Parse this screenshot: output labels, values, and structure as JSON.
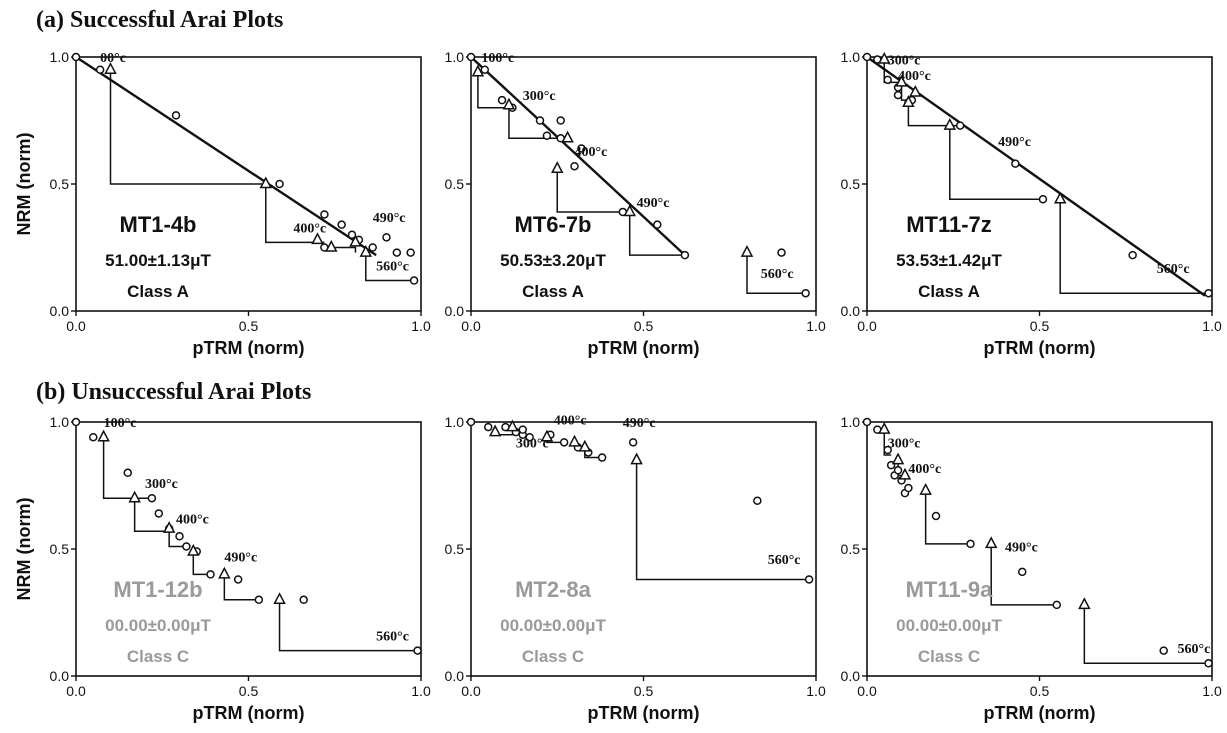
{
  "sections": [
    {
      "title": "(a) Successful Arai Plots"
    },
    {
      "title": "(b) Unsuccessful Arai Plots"
    }
  ],
  "colors": {
    "pass": "#111111",
    "fail": "#9a9a9a"
  },
  "chart_data": [
    {
      "type": "scatter",
      "section": 0,
      "xlabel": "pTRM (norm)",
      "ylabel": "NRM (norm)",
      "xlim": [
        0,
        1
      ],
      "ylim": [
        0,
        1
      ],
      "xticks": [
        "0.0",
        "0.5",
        "1.0"
      ],
      "yticks": [
        "0.0",
        "0.5",
        "1.0"
      ],
      "sample": "MT1-4b",
      "estimate": "51.00±1.13μT",
      "class": "Class A",
      "status": "pass",
      "circles": [
        [
          0,
          1.0
        ],
        [
          0.07,
          0.95
        ],
        [
          0.29,
          0.77
        ],
        [
          0.59,
          0.5
        ],
        [
          0.72,
          0.38
        ],
        [
          0.77,
          0.34
        ],
        [
          0.8,
          0.3
        ],
        [
          0.82,
          0.28
        ],
        [
          0.86,
          0.25
        ],
        [
          0.72,
          0.25
        ],
        [
          0.9,
          0.29
        ],
        [
          0.93,
          0.23
        ],
        [
          0.97,
          0.23
        ],
        [
          0.98,
          0.12
        ]
      ],
      "triangles": [
        [
          0.1,
          0.95
        ],
        [
          0.55,
          0.5
        ],
        [
          0.7,
          0.28
        ],
        [
          0.74,
          0.25
        ],
        [
          0.81,
          0.27
        ],
        [
          0.84,
          0.23
        ]
      ],
      "fit": [
        [
          0,
          1.0
        ],
        [
          0.87,
          0.22
        ]
      ],
      "checks": [
        [
          0.1,
          0.95,
          0.1,
          0.5,
          0.55,
          0.5
        ],
        [
          0.55,
          0.5,
          0.55,
          0.27,
          0.72,
          0.27
        ],
        [
          0.72,
          0.25,
          0.81,
          0.25,
          0.81,
          0.23
        ],
        [
          0.84,
          0.23,
          0.84,
          0.12,
          0.98,
          0.12
        ]
      ],
      "temps": [
        {
          "text": "00°c",
          "x": 0.07,
          "y": 0.98
        },
        {
          "text": "400°c",
          "x": 0.63,
          "y": 0.31
        },
        {
          "text": "490°c",
          "x": 0.86,
          "y": 0.35
        },
        {
          "text": "560°c",
          "x": 0.87,
          "y": 0.16
        }
      ]
    },
    {
      "type": "scatter",
      "section": 0,
      "xlabel": "pTRM (norm)",
      "ylabel": "NRM (norm)",
      "xlim": [
        0,
        1
      ],
      "ylim": [
        0,
        1
      ],
      "xticks": [
        "0.0",
        "0.5",
        "1.0"
      ],
      "yticks": [
        "0.0",
        "0.5",
        "1.0"
      ],
      "sample": "MT6-7b",
      "estimate": "50.53±3.20μT",
      "class": "Class A",
      "status": "pass",
      "circles": [
        [
          0,
          1.0
        ],
        [
          0.04,
          0.95
        ],
        [
          0.09,
          0.83
        ],
        [
          0.12,
          0.8
        ],
        [
          0.2,
          0.75
        ],
        [
          0.22,
          0.69
        ],
        [
          0.26,
          0.75
        ],
        [
          0.26,
          0.68
        ],
        [
          0.3,
          0.57
        ],
        [
          0.32,
          0.64
        ],
        [
          0.44,
          0.39
        ],
        [
          0.54,
          0.34
        ],
        [
          0.62,
          0.22
        ],
        [
          0.9,
          0.23
        ],
        [
          0.97,
          0.07
        ]
      ],
      "triangles": [
        [
          0.02,
          0.94
        ],
        [
          0.11,
          0.81
        ],
        [
          0.28,
          0.68
        ],
        [
          0.25,
          0.56
        ],
        [
          0.46,
          0.39
        ],
        [
          0.8,
          0.23
        ]
      ],
      "fit": [
        [
          0,
          1.0
        ],
        [
          0.62,
          0.22
        ]
      ],
      "checks": [
        [
          0.02,
          0.94,
          0.02,
          0.8,
          0.12,
          0.8
        ],
        [
          0.11,
          0.81,
          0.11,
          0.68,
          0.26,
          0.68
        ],
        [
          0.25,
          0.56,
          0.25,
          0.39,
          0.44,
          0.39
        ],
        [
          0.46,
          0.39,
          0.46,
          0.22,
          0.62,
          0.22
        ],
        [
          0.8,
          0.23,
          0.8,
          0.07,
          0.97,
          0.07
        ]
      ],
      "temps": [
        {
          "text": "100°c",
          "x": 0.03,
          "y": 0.98
        },
        {
          "text": "300°c",
          "x": 0.15,
          "y": 0.83
        },
        {
          "text": "400°c",
          "x": 0.3,
          "y": 0.61
        },
        {
          "text": "490°c",
          "x": 0.48,
          "y": 0.41
        },
        {
          "text": "560°c",
          "x": 0.84,
          "y": 0.13
        }
      ]
    },
    {
      "type": "scatter",
      "section": 0,
      "xlabel": "pTRM (norm)",
      "ylabel": "NRM (norm)",
      "xlim": [
        0,
        1
      ],
      "ylim": [
        0,
        1
      ],
      "xticks": [
        "0.0",
        "0.5",
        "1.0"
      ],
      "yticks": [
        "0.0",
        "0.5",
        "1.0"
      ],
      "sample": "MT11-7z",
      "estimate": "53.53±1.42μT",
      "class": "Class A",
      "status": "pass",
      "circles": [
        [
          0,
          1.0
        ],
        [
          0.03,
          0.99
        ],
        [
          0.06,
          0.91
        ],
        [
          0.09,
          0.88
        ],
        [
          0.09,
          0.85
        ],
        [
          0.12,
          0.82
        ],
        [
          0.13,
          0.83
        ],
        [
          0.27,
          0.73
        ],
        [
          0.43,
          0.58
        ],
        [
          0.51,
          0.44
        ],
        [
          0.77,
          0.22
        ],
        [
          0.99,
          0.07
        ]
      ],
      "triangles": [
        [
          0.05,
          0.99
        ],
        [
          0.1,
          0.9
        ],
        [
          0.14,
          0.86
        ],
        [
          0.12,
          0.82
        ],
        [
          0.24,
          0.73
        ],
        [
          0.56,
          0.44
        ]
      ],
      "fit": [
        [
          0,
          1.0
        ],
        [
          0.98,
          0.06
        ]
      ],
      "checks": [
        [
          0.05,
          0.99,
          0.05,
          0.9,
          0.09,
          0.9
        ],
        [
          0.1,
          0.9,
          0.1,
          0.83,
          0.14,
          0.83
        ],
        [
          0.12,
          0.82,
          0.12,
          0.73,
          0.27,
          0.73
        ],
        [
          0.24,
          0.73,
          0.24,
          0.44,
          0.51,
          0.44
        ],
        [
          0.56,
          0.44,
          0.56,
          0.07,
          0.99,
          0.07
        ]
      ],
      "temps": [
        {
          "text": "300°c",
          "x": 0.06,
          "y": 0.97
        },
        {
          "text": "400°c",
          "x": 0.09,
          "y": 0.91
        },
        {
          "text": "490°c",
          "x": 0.38,
          "y": 0.65
        },
        {
          "text": "560°c",
          "x": 0.84,
          "y": 0.15
        }
      ]
    },
    {
      "type": "scatter",
      "section": 1,
      "xlabel": "pTRM (norm)",
      "ylabel": "NRM (norm)",
      "xlim": [
        0,
        1
      ],
      "ylim": [
        0,
        1
      ],
      "xticks": [
        "0.0",
        "0.5",
        "1.0"
      ],
      "yticks": [
        "0.0",
        "0.5",
        "1.0"
      ],
      "sample": "MT1-12b",
      "estimate": "00.00±0.00μT",
      "class": "Class C",
      "status": "fail",
      "circles": [
        [
          0,
          1.0
        ],
        [
          0.05,
          0.94
        ],
        [
          0.15,
          0.8
        ],
        [
          0.22,
          0.7
        ],
        [
          0.24,
          0.64
        ],
        [
          0.27,
          0.58
        ],
        [
          0.3,
          0.55
        ],
        [
          0.32,
          0.51
        ],
        [
          0.35,
          0.49
        ],
        [
          0.39,
          0.4
        ],
        [
          0.47,
          0.38
        ],
        [
          0.53,
          0.3
        ],
        [
          0.66,
          0.3
        ],
        [
          0.99,
          0.1
        ]
      ],
      "triangles": [
        [
          0.08,
          0.94
        ],
        [
          0.17,
          0.7
        ],
        [
          0.27,
          0.58
        ],
        [
          0.34,
          0.49
        ],
        [
          0.43,
          0.4
        ],
        [
          0.59,
          0.3
        ]
      ],
      "fit": [],
      "checks": [
        [
          0.08,
          0.94,
          0.08,
          0.7,
          0.22,
          0.7
        ],
        [
          0.17,
          0.7,
          0.17,
          0.57,
          0.27,
          0.57
        ],
        [
          0.27,
          0.58,
          0.27,
          0.51,
          0.32,
          0.51
        ],
        [
          0.34,
          0.49,
          0.34,
          0.4,
          0.39,
          0.4
        ],
        [
          0.43,
          0.4,
          0.43,
          0.3,
          0.53,
          0.3
        ],
        [
          0.59,
          0.3,
          0.59,
          0.1,
          0.99,
          0.1
        ]
      ],
      "temps": [
        {
          "text": "100°c",
          "x": 0.08,
          "y": 0.98
        },
        {
          "text": "300°c",
          "x": 0.2,
          "y": 0.74
        },
        {
          "text": "400°c",
          "x": 0.29,
          "y": 0.6
        },
        {
          "text": "490°c",
          "x": 0.43,
          "y": 0.45
        },
        {
          "text": "560°c",
          "x": 0.87,
          "y": 0.14
        }
      ]
    },
    {
      "type": "scatter",
      "section": 1,
      "xlabel": "pTRM (norm)",
      "ylabel": "NRM (norm)",
      "xlim": [
        0,
        1
      ],
      "ylim": [
        0,
        1
      ],
      "xticks": [
        "0.0",
        "0.5",
        "1.0"
      ],
      "yticks": [
        "0.0",
        "0.5",
        "1.0"
      ],
      "sample": "MT2-8a",
      "estimate": "00.00±0.00μT",
      "class": "Class C",
      "status": "fail",
      "circles": [
        [
          0,
          1.0
        ],
        [
          0.05,
          0.98
        ],
        [
          0.1,
          0.98
        ],
        [
          0.13,
          0.96
        ],
        [
          0.15,
          0.95
        ],
        [
          0.17,
          0.94
        ],
        [
          0.15,
          0.97
        ],
        [
          0.23,
          0.95
        ],
        [
          0.27,
          0.92
        ],
        [
          0.31,
          0.9
        ],
        [
          0.34,
          0.88
        ],
        [
          0.38,
          0.86
        ],
        [
          0.47,
          0.92
        ],
        [
          0.83,
          0.69
        ],
        [
          0.98,
          0.38
        ]
      ],
      "triangles": [
        [
          0.07,
          0.96
        ],
        [
          0.12,
          0.98
        ],
        [
          0.22,
          0.94
        ],
        [
          0.3,
          0.92
        ],
        [
          0.33,
          0.9
        ],
        [
          0.48,
          0.85
        ]
      ],
      "fit": [],
      "checks": [
        [
          0.07,
          0.96,
          0.07,
          0.95,
          0.13,
          0.95
        ],
        [
          0.22,
          0.94,
          0.22,
          0.92,
          0.27,
          0.92
        ],
        [
          0.33,
          0.9,
          0.33,
          0.86,
          0.38,
          0.86
        ],
        [
          0.48,
          0.85,
          0.48,
          0.38,
          0.98,
          0.38
        ]
      ],
      "temps": [
        {
          "text": "400°c",
          "x": 0.24,
          "y": 0.99
        },
        {
          "text": "300°c",
          "x": 0.13,
          "y": 0.9
        },
        {
          "text": "490°c",
          "x": 0.44,
          "y": 0.98
        },
        {
          "text": "560°c",
          "x": 0.86,
          "y": 0.44
        }
      ]
    },
    {
      "type": "scatter",
      "section": 1,
      "xlabel": "pTRM (norm)",
      "ylabel": "NRM (norm)",
      "xlim": [
        0,
        1
      ],
      "ylim": [
        0,
        1
      ],
      "xticks": [
        "0.0",
        "0.5",
        "1.0"
      ],
      "yticks": [
        "0.0",
        "0.5",
        "1.0"
      ],
      "sample": "MT11-9a",
      "estimate": "00.00±0.00μT",
      "class": "Class C",
      "status": "fail",
      "circles": [
        [
          0,
          1.0
        ],
        [
          0.03,
          0.97
        ],
        [
          0.06,
          0.89
        ],
        [
          0.07,
          0.83
        ],
        [
          0.08,
          0.79
        ],
        [
          0.09,
          0.81
        ],
        [
          0.1,
          0.77
        ],
        [
          0.11,
          0.72
        ],
        [
          0.12,
          0.74
        ],
        [
          0.2,
          0.63
        ],
        [
          0.3,
          0.52
        ],
        [
          0.45,
          0.41
        ],
        [
          0.55,
          0.28
        ],
        [
          0.86,
          0.1
        ],
        [
          0.99,
          0.05
        ]
      ],
      "triangles": [
        [
          0.05,
          0.97
        ],
        [
          0.09,
          0.85
        ],
        [
          0.11,
          0.79
        ],
        [
          0.17,
          0.73
        ],
        [
          0.36,
          0.52
        ],
        [
          0.63,
          0.28
        ]
      ],
      "fit": [],
      "checks": [
        [
          0.05,
          0.97,
          0.05,
          0.87,
          0.07,
          0.87
        ],
        [
          0.09,
          0.85,
          0.09,
          0.79,
          0.1,
          0.79
        ],
        [
          0.17,
          0.73,
          0.17,
          0.52,
          0.3,
          0.52
        ],
        [
          0.36,
          0.52,
          0.36,
          0.28,
          0.55,
          0.28
        ],
        [
          0.63,
          0.28,
          0.63,
          0.05,
          0.99,
          0.05
        ]
      ],
      "temps": [
        {
          "text": "300°c",
          "x": 0.06,
          "y": 0.9
        },
        {
          "text": "400°c",
          "x": 0.12,
          "y": 0.8
        },
        {
          "text": "490°c",
          "x": 0.4,
          "y": 0.49
        },
        {
          "text": "560°c",
          "x": 0.9,
          "y": 0.09
        }
      ]
    }
  ]
}
